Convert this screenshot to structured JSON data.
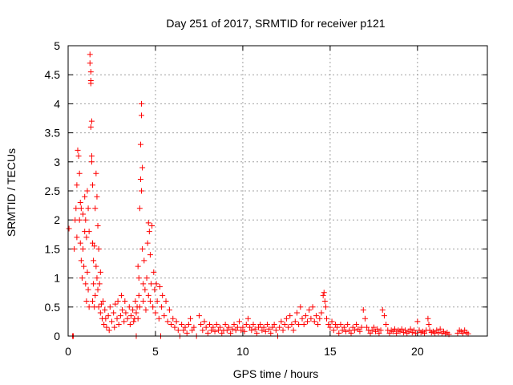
{
  "chart_data": {
    "type": "scatter",
    "title": "Day 251 of 2017, SRMTID for receiver p121",
    "xlabel": "GPS time / hours",
    "ylabel": "SRMTID / TECUs",
    "xlim": [
      0,
      24
    ],
    "ylim": [
      0,
      5
    ],
    "xticks": [
      0,
      5,
      10,
      15,
      20
    ],
    "yticks": [
      0,
      0.5,
      1,
      1.5,
      2,
      2.5,
      3,
      3.5,
      4,
      4.5,
      5
    ],
    "xtick_labels": [
      "0",
      "5",
      "10",
      "15",
      "20"
    ],
    "ytick_labels": [
      "0",
      "0.5",
      "1",
      "1.5",
      "2",
      "2.5",
      "3",
      "3.5",
      "4",
      "4.5",
      "5"
    ],
    "grid": true,
    "marker": "+",
    "marker_color": "#ff0000",
    "series": [
      {
        "name": "SRMTID",
        "points": [
          [
            0.05,
            1.85
          ],
          [
            0.25,
            0.0
          ],
          [
            0.3,
            0.0
          ],
          [
            0.35,
            1.5
          ],
          [
            0.4,
            2.0
          ],
          [
            0.45,
            2.2
          ],
          [
            0.5,
            2.6
          ],
          [
            0.5,
            1.7
          ],
          [
            0.55,
            3.2
          ],
          [
            0.6,
            3.1
          ],
          [
            0.65,
            2.8
          ],
          [
            0.65,
            2.0
          ],
          [
            0.7,
            1.6
          ],
          [
            0.7,
            2.3
          ],
          [
            0.75,
            1.3
          ],
          [
            0.75,
            2.2
          ],
          [
            0.8,
            1.0
          ],
          [
            0.85,
            2.1
          ],
          [
            0.85,
            1.5
          ],
          [
            0.9,
            1.2
          ],
          [
            0.95,
            2.4
          ],
          [
            0.95,
            1.8
          ],
          [
            1.0,
            0.9
          ],
          [
            1.0,
            2.0
          ],
          [
            1.05,
            0.6
          ],
          [
            1.05,
            1.7
          ],
          [
            1.1,
            2.5
          ],
          [
            1.1,
            1.1
          ],
          [
            1.15,
            0.8
          ],
          [
            1.15,
            2.2
          ],
          [
            1.2,
            1.8
          ],
          [
            1.2,
            0.5
          ],
          [
            1.25,
            4.85
          ],
          [
            1.25,
            4.7
          ],
          [
            1.3,
            4.55
          ],
          [
            1.3,
            4.4
          ],
          [
            1.3,
            4.35
          ],
          [
            1.3,
            3.6
          ],
          [
            1.35,
            3.7
          ],
          [
            1.35,
            3.0
          ],
          [
            1.35,
            3.1
          ],
          [
            1.4,
            2.6
          ],
          [
            1.4,
            1.6
          ],
          [
            1.4,
            0.6
          ],
          [
            1.45,
            1.3
          ],
          [
            1.45,
            0.9
          ],
          [
            1.5,
            0.5
          ],
          [
            1.5,
            1.55
          ],
          [
            1.55,
            2.2
          ],
          [
            1.55,
            0.7
          ],
          [
            1.6,
            2.8
          ],
          [
            1.6,
            1.2
          ],
          [
            1.65,
            2.4
          ],
          [
            1.65,
            1.0
          ],
          [
            1.7,
            1.9
          ],
          [
            1.7,
            0.8
          ],
          [
            1.75,
            0.5
          ],
          [
            1.75,
            1.5
          ],
          [
            1.8,
            0.9
          ],
          [
            1.85,
            0.4
          ],
          [
            1.85,
            1.1
          ],
          [
            1.9,
            0.55
          ],
          [
            1.95,
            0.3
          ],
          [
            2.0,
            0.6
          ],
          [
            2.05,
            0.2
          ],
          [
            2.1,
            0.45
          ],
          [
            2.15,
            0.3
          ],
          [
            2.2,
            0.15
          ],
          [
            2.3,
            0.35
          ],
          [
            2.35,
            0.1
          ],
          [
            2.4,
            0.5
          ],
          [
            2.5,
            0.25
          ],
          [
            2.6,
            0.4
          ],
          [
            2.65,
            0.15
          ],
          [
            2.7,
            0.55
          ],
          [
            2.8,
            0.3
          ],
          [
            2.85,
            0.6
          ],
          [
            2.9,
            0.2
          ],
          [
            3.0,
            0.35
          ],
          [
            3.05,
            0.7
          ],
          [
            3.1,
            0.45
          ],
          [
            3.2,
            0.25
          ],
          [
            3.25,
            0.6
          ],
          [
            3.3,
            0.4
          ],
          [
            3.4,
            0.3
          ],
          [
            3.5,
            0.5
          ],
          [
            3.55,
            0.2
          ],
          [
            3.6,
            0.35
          ],
          [
            3.7,
            0.45
          ],
          [
            3.75,
            0.25
          ],
          [
            3.8,
            0.3
          ],
          [
            3.85,
            0.6
          ],
          [
            3.9,
            0.0
          ],
          [
            3.9,
            0.4
          ],
          [
            3.95,
            0.5
          ],
          [
            4.0,
            1.2
          ],
          [
            4.0,
            0.3
          ],
          [
            4.05,
            1.0
          ],
          [
            4.05,
            0.7
          ],
          [
            4.1,
            2.2
          ],
          [
            4.1,
            0.5
          ],
          [
            4.15,
            2.7
          ],
          [
            4.15,
            3.3
          ],
          [
            4.2,
            4.0
          ],
          [
            4.2,
            3.8
          ],
          [
            4.2,
            2.5
          ],
          [
            4.25,
            2.9
          ],
          [
            4.25,
            1.5
          ],
          [
            4.3,
            0.9
          ],
          [
            4.3,
            0.6
          ],
          [
            4.35,
            1.3
          ],
          [
            4.4,
            0.8
          ],
          [
            4.45,
            0.45
          ],
          [
            4.5,
            1.0
          ],
          [
            4.55,
            1.6
          ],
          [
            4.6,
            0.7
          ],
          [
            4.6,
            1.95
          ],
          [
            4.65,
            1.8
          ],
          [
            4.7,
            1.4
          ],
          [
            4.7,
            0.6
          ],
          [
            4.75,
            0.9
          ],
          [
            4.8,
            1.9
          ],
          [
            4.85,
            0.5
          ],
          [
            4.9,
            1.1
          ],
          [
            4.95,
            0.8
          ],
          [
            5.0,
            0.4
          ],
          [
            5.05,
            0.9
          ],
          [
            5.1,
            0.6
          ],
          [
            5.2,
            0.3
          ],
          [
            5.25,
            0.85
          ],
          [
            5.3,
            0.0
          ],
          [
            5.35,
            0.5
          ],
          [
            5.4,
            0.7
          ],
          [
            5.5,
            0.35
          ],
          [
            5.6,
            0.6
          ],
          [
            5.7,
            0.25
          ],
          [
            5.8,
            0.45
          ],
          [
            5.9,
            0.2
          ],
          [
            6.0,
            0.3
          ],
          [
            6.1,
            0.15
          ],
          [
            6.2,
            0.25
          ],
          [
            6.3,
            0.1
          ],
          [
            6.4,
            0.0
          ],
          [
            6.5,
            0.2
          ],
          [
            6.6,
            0.1
          ],
          [
            6.7,
            0.15
          ],
          [
            6.8,
            0.05
          ],
          [
            6.9,
            0.2
          ],
          [
            7.0,
            0.3
          ],
          [
            7.1,
            0.1
          ],
          [
            7.2,
            0.15
          ],
          [
            7.35,
            0.0
          ],
          [
            7.5,
            0.35
          ],
          [
            7.6,
            0.2
          ],
          [
            7.7,
            0.1
          ],
          [
            7.8,
            0.25
          ],
          [
            7.9,
            0.15
          ],
          [
            8.0,
            0.05
          ],
          [
            8.1,
            0.2
          ],
          [
            8.2,
            0.1
          ],
          [
            8.3,
            0.15
          ],
          [
            8.4,
            0.08
          ],
          [
            8.5,
            0.2
          ],
          [
            8.6,
            0.1
          ],
          [
            8.7,
            0.15
          ],
          [
            8.8,
            0.05
          ],
          [
            8.9,
            0.1
          ],
          [
            9.0,
            0.2
          ],
          [
            9.1,
            0.1
          ],
          [
            9.2,
            0.15
          ],
          [
            9.3,
            0.05
          ],
          [
            9.4,
            0.12
          ],
          [
            9.5,
            0.2
          ],
          [
            9.6,
            0.1
          ],
          [
            9.7,
            0.15
          ],
          [
            9.8,
            0.25
          ],
          [
            9.9,
            0.1
          ],
          [
            10.0,
            0.15
          ],
          [
            10.1,
            0.08
          ],
          [
            10.2,
            0.2
          ],
          [
            10.3,
            0.3
          ],
          [
            10.4,
            0.15
          ],
          [
            10.5,
            0.1
          ],
          [
            10.6,
            0.2
          ],
          [
            10.7,
            0.12
          ],
          [
            10.8,
            0.05
          ],
          [
            10.9,
            0.15
          ],
          [
            11.0,
            0.2
          ],
          [
            11.1,
            0.1
          ],
          [
            11.2,
            0.15
          ],
          [
            11.3,
            0.08
          ],
          [
            11.4,
            0.2
          ],
          [
            11.5,
            0.12
          ],
          [
            11.6,
            0.05
          ],
          [
            11.7,
            0.15
          ],
          [
            11.8,
            0.2
          ],
          [
            11.9,
            0.1
          ],
          [
            12.0,
            0.0
          ],
          [
            12.1,
            0.15
          ],
          [
            12.2,
            0.25
          ],
          [
            12.3,
            0.1
          ],
          [
            12.4,
            0.2
          ],
          [
            12.5,
            0.3
          ],
          [
            12.6,
            0.15
          ],
          [
            12.7,
            0.35
          ],
          [
            12.8,
            0.2
          ],
          [
            12.9,
            0.1
          ],
          [
            13.0,
            0.25
          ],
          [
            13.1,
            0.4
          ],
          [
            13.2,
            0.2
          ],
          [
            13.3,
            0.5
          ],
          [
            13.4,
            0.3
          ],
          [
            13.5,
            0.2
          ],
          [
            13.6,
            0.35
          ],
          [
            13.7,
            0.25
          ],
          [
            13.8,
            0.45
          ],
          [
            13.9,
            0.3
          ],
          [
            14.0,
            0.5
          ],
          [
            14.1,
            0.25
          ],
          [
            14.2,
            0.35
          ],
          [
            14.3,
            0.2
          ],
          [
            14.4,
            0.3
          ],
          [
            14.5,
            0.4
          ],
          [
            14.6,
            0.7
          ],
          [
            14.65,
            0.75
          ],
          [
            14.7,
            0.6
          ],
          [
            14.75,
            0.5
          ],
          [
            14.8,
            0.3
          ],
          [
            14.9,
            0.2
          ],
          [
            15.0,
            0.15
          ],
          [
            15.1,
            0.25
          ],
          [
            15.2,
            0.1
          ],
          [
            15.3,
            0.2
          ],
          [
            15.4,
            0.15
          ],
          [
            15.5,
            0.05
          ],
          [
            15.6,
            0.2
          ],
          [
            15.7,
            0.1
          ],
          [
            15.8,
            0.15
          ],
          [
            15.9,
            0.08
          ],
          [
            16.0,
            0.2
          ],
          [
            16.1,
            0.1
          ],
          [
            16.2,
            0.05
          ],
          [
            16.3,
            0.15
          ],
          [
            16.4,
            0.1
          ],
          [
            16.5,
            0.2
          ],
          [
            16.6,
            0.12
          ],
          [
            16.7,
            0.08
          ],
          [
            16.8,
            0.15
          ],
          [
            16.9,
            0.45
          ],
          [
            17.0,
            0.3
          ],
          [
            17.1,
            0.15
          ],
          [
            17.2,
            0.1
          ],
          [
            17.3,
            0.05
          ],
          [
            17.4,
            0.1
          ],
          [
            17.5,
            0.15
          ],
          [
            17.6,
            0.08
          ],
          [
            17.7,
            0.12
          ],
          [
            17.8,
            0.05
          ],
          [
            17.9,
            0.1
          ],
          [
            18.0,
            0.45
          ],
          [
            18.1,
            0.35
          ],
          [
            18.2,
            0.2
          ],
          [
            18.3,
            0.1
          ],
          [
            18.4,
            0.05
          ],
          [
            18.5,
            0.1
          ],
          [
            18.6,
            0.08
          ],
          [
            18.7,
            0.12
          ],
          [
            18.8,
            0.05
          ],
          [
            18.9,
            0.1
          ],
          [
            19.0,
            0.08
          ],
          [
            19.1,
            0.12
          ],
          [
            19.2,
            0.06
          ],
          [
            19.3,
            0.1
          ],
          [
            19.4,
            0.05
          ],
          [
            19.5,
            0.08
          ],
          [
            19.6,
            0.12
          ],
          [
            19.7,
            0.06
          ],
          [
            19.8,
            0.1
          ],
          [
            19.9,
            0.05
          ],
          [
            20.0,
            0.25
          ],
          [
            20.1,
            0.1
          ],
          [
            20.2,
            0.06
          ],
          [
            20.3,
            0.08
          ],
          [
            20.4,
            0.05
          ],
          [
            20.5,
            0.1
          ],
          [
            20.6,
            0.3
          ],
          [
            20.65,
            0.2
          ],
          [
            20.7,
            0.1
          ],
          [
            20.8,
            0.06
          ],
          [
            20.9,
            0.08
          ],
          [
            21.0,
            0.05
          ],
          [
            21.1,
            0.1
          ],
          [
            21.2,
            0.06
          ],
          [
            21.3,
            0.12
          ],
          [
            21.4,
            0.05
          ],
          [
            21.5,
            0.08
          ],
          [
            21.6,
            0.04
          ],
          [
            21.7,
            0.06
          ],
          [
            21.8,
            0.03
          ],
          [
            22.3,
            0.05
          ],
          [
            22.4,
            0.1
          ],
          [
            22.5,
            0.08
          ],
          [
            22.6,
            0.05
          ],
          [
            22.7,
            0.1
          ],
          [
            22.8,
            0.06
          ],
          [
            22.9,
            0.04
          ]
        ]
      }
    ]
  }
}
